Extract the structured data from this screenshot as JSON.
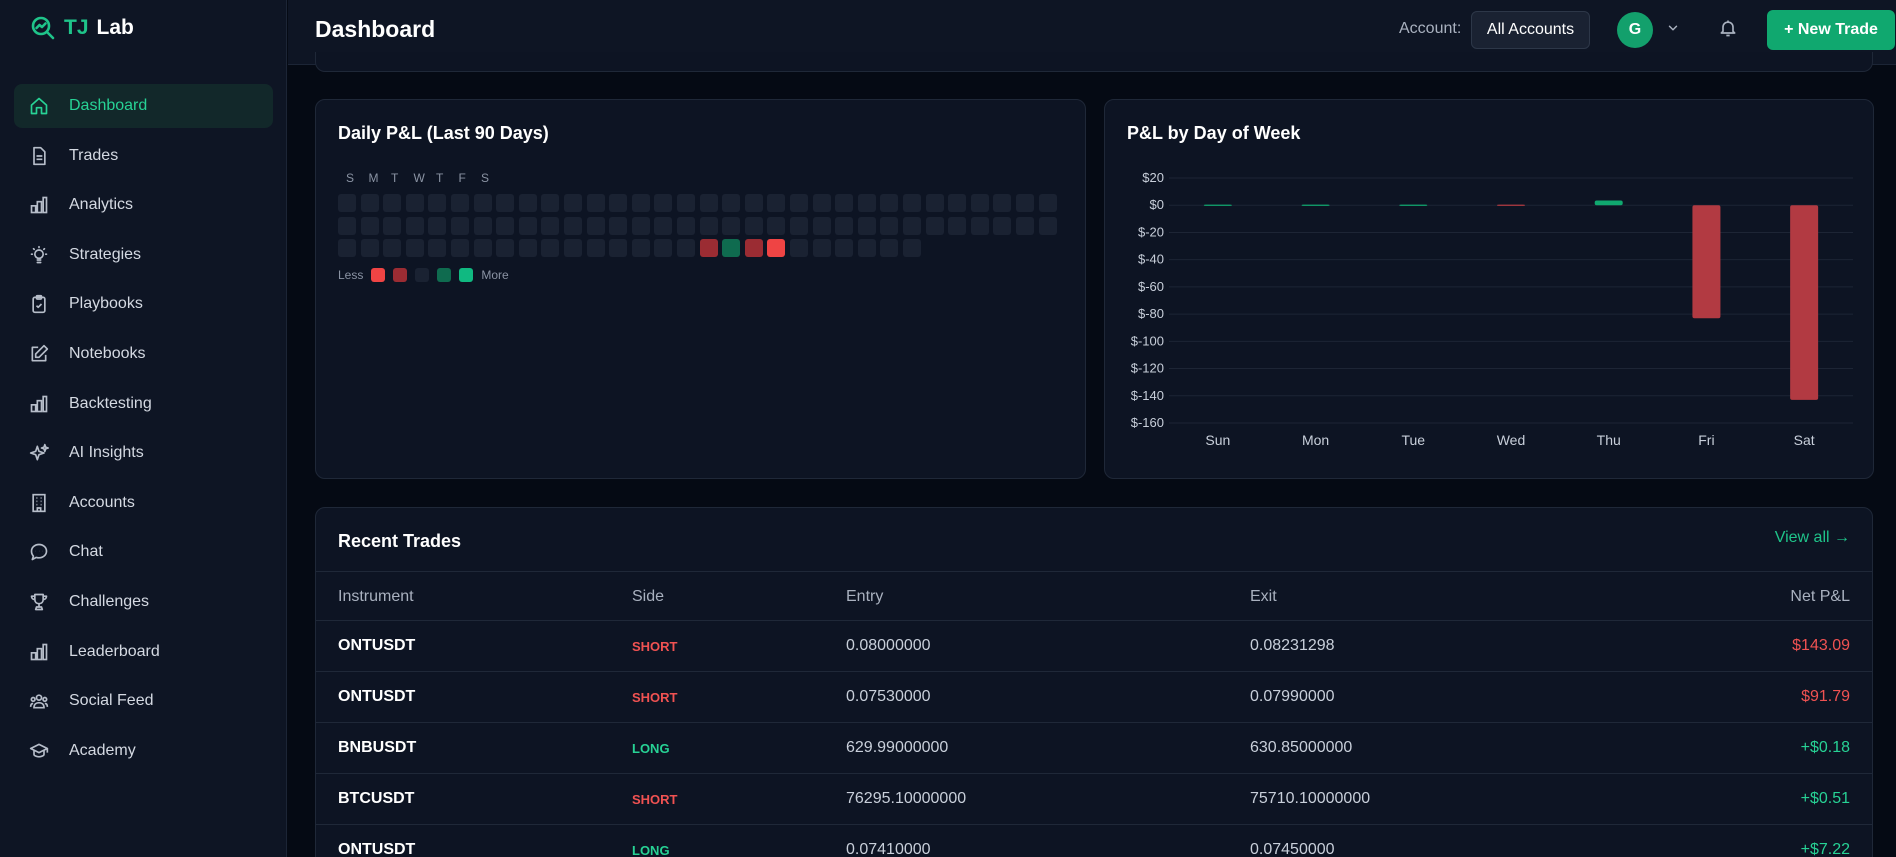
{
  "app": {
    "brand_tj": "TJ",
    "brand_lab": "Lab"
  },
  "sidebar": {
    "items": [
      {
        "label": "Dashboard",
        "icon": "home-icon",
        "active": true
      },
      {
        "label": "Trades",
        "icon": "document-icon"
      },
      {
        "label": "Analytics",
        "icon": "bar-chart-icon"
      },
      {
        "label": "Strategies",
        "icon": "lightbulb-icon"
      },
      {
        "label": "Playbooks",
        "icon": "clipboard-check-icon"
      },
      {
        "label": "Notebooks",
        "icon": "pencil-square-icon"
      },
      {
        "label": "Backtesting",
        "icon": "bar-chart-icon"
      },
      {
        "label": "AI Insights",
        "icon": "sparkles-icon"
      },
      {
        "label": "Accounts",
        "icon": "building-icon"
      },
      {
        "label": "Chat",
        "icon": "chat-bubble-icon"
      },
      {
        "label": "Challenges",
        "icon": "trophy-icon"
      },
      {
        "label": "Leaderboard",
        "icon": "bar-chart-icon"
      },
      {
        "label": "Social Feed",
        "icon": "users-icon"
      },
      {
        "label": "Academy",
        "icon": "graduation-cap-icon"
      }
    ]
  },
  "header": {
    "title": "Dashboard",
    "account_label": "Account:",
    "account_value": "All Accounts",
    "avatar_initial": "G",
    "new_trade_label": "+ New Trade"
  },
  "heatmap": {
    "title": "Daily P&L (Last 90 Days)",
    "day_labels": [
      "S",
      "M",
      "T",
      "W",
      "T",
      "F",
      "S"
    ],
    "legend_less": "Less",
    "legend_more": "More",
    "legend_colors": [
      "#ef4444",
      "#9b2c33",
      "#1a2232",
      "#0f6b4f",
      "#10b981"
    ],
    "highlight": [
      {
        "index": 16,
        "level": "neg-medium"
      },
      {
        "index": 17,
        "level": "pos-medium"
      },
      {
        "index": 18,
        "level": "neg-medium"
      },
      {
        "index": 19,
        "level": "neg-high"
      }
    ]
  },
  "dow_chart": {
    "title": "P&L by Day of Week",
    "chart_data": {
      "type": "bar",
      "title": "P&L by Day of Week",
      "categories": [
        "Sun",
        "Mon",
        "Tue",
        "Wed",
        "Thu",
        "Fri",
        "Sat"
      ],
      "values": [
        0,
        0,
        0,
        -0.5,
        3.5,
        -83,
        -143
      ],
      "y_ticks": [
        "$20",
        "$0",
        "$-20",
        "$-40",
        "$-60",
        "$-80",
        "$-100",
        "$-120",
        "$-140",
        "$-160"
      ],
      "ylim": [
        -160,
        20
      ],
      "grid": true,
      "pos_color": "#10a86f",
      "neg_color": "#b23a42"
    }
  },
  "recent_trades": {
    "title": "Recent Trades",
    "view_all": "View all →",
    "columns": [
      "Instrument",
      "Side",
      "Entry",
      "Exit",
      "Net P&L"
    ],
    "rows": [
      {
        "instrument": "ONTUSDT",
        "side": "SHORT",
        "entry": "0.08000000",
        "exit": "0.08231298",
        "pnl": "$143.09",
        "pnl_sign": "neg"
      },
      {
        "instrument": "ONTUSDT",
        "side": "SHORT",
        "entry": "0.07530000",
        "exit": "0.07990000",
        "pnl": "$91.79",
        "pnl_sign": "neg"
      },
      {
        "instrument": "BNBUSDT",
        "side": "LONG",
        "entry": "629.99000000",
        "exit": "630.85000000",
        "pnl": "+$0.18",
        "pnl_sign": "pos"
      },
      {
        "instrument": "BTCUSDT",
        "side": "SHORT",
        "entry": "76295.10000000",
        "exit": "75710.10000000",
        "pnl": "+$0.51",
        "pnl_sign": "pos"
      },
      {
        "instrument": "ONTUSDT",
        "side": "LONG",
        "entry": "0.07410000",
        "exit": "0.07450000",
        "pnl": "+$7.22",
        "pnl_sign": "pos"
      }
    ]
  }
}
